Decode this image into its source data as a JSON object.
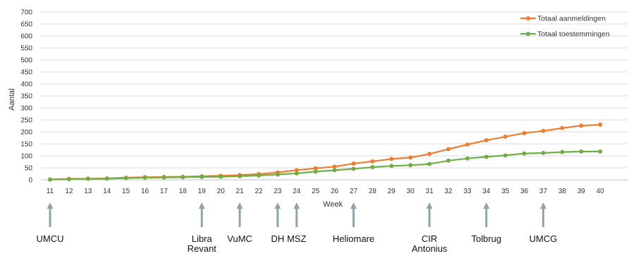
{
  "chart_data": {
    "type": "line",
    "xlabel": "Week",
    "ylabel": "Aantal",
    "ylim": [
      0,
      700
    ],
    "yticks": [
      0,
      50,
      100,
      150,
      200,
      250,
      300,
      350,
      400,
      450,
      500,
      550,
      600,
      650,
      700
    ],
    "x": [
      11,
      12,
      13,
      14,
      15,
      16,
      17,
      18,
      19,
      20,
      21,
      22,
      23,
      24,
      25,
      26,
      27,
      28,
      29,
      30,
      31,
      32,
      33,
      34,
      35,
      36,
      37,
      38,
      39,
      40
    ],
    "grid": "horizontal",
    "legend_position": "top-right",
    "series": [
      {
        "name": "Totaal aanmeldingen",
        "color": "#ED7D31",
        "values": [
          2,
          4,
          5,
          6,
          9,
          11,
          12,
          13,
          15,
          17,
          20,
          24,
          31,
          40,
          48,
          55,
          68,
          77,
          87,
          93,
          108,
          128,
          147,
          165,
          180,
          195,
          204,
          216,
          226,
          230
        ]
      },
      {
        "name": "Totaal toestemmingen",
        "color": "#70AD47",
        "values": [
          1,
          3,
          4,
          5,
          7,
          9,
          10,
          11,
          12,
          13,
          15,
          18,
          22,
          27,
          34,
          40,
          46,
          53,
          58,
          61,
          66,
          80,
          89,
          96,
          102,
          110,
          112,
          116,
          118,
          118
        ]
      }
    ],
    "annotations": [
      {
        "week": 11,
        "lines": [
          "UMCU"
        ]
      },
      {
        "week": 19,
        "lines": [
          "Libra",
          "Revant"
        ]
      },
      {
        "week": 21,
        "lines": [
          "VuMC"
        ]
      },
      {
        "week": 23,
        "lines": [
          "DH"
        ]
      },
      {
        "week": 24,
        "lines": [
          "MSZ"
        ]
      },
      {
        "week": 27,
        "lines": [
          "Heliomare"
        ]
      },
      {
        "week": 31,
        "lines": [
          "CIR",
          "Antonius"
        ]
      },
      {
        "week": 34,
        "lines": [
          "Tolbrug"
        ]
      },
      {
        "week": 37,
        "lines": [
          "UMCG"
        ]
      }
    ],
    "arrow_color": "#8FA6A9"
  }
}
